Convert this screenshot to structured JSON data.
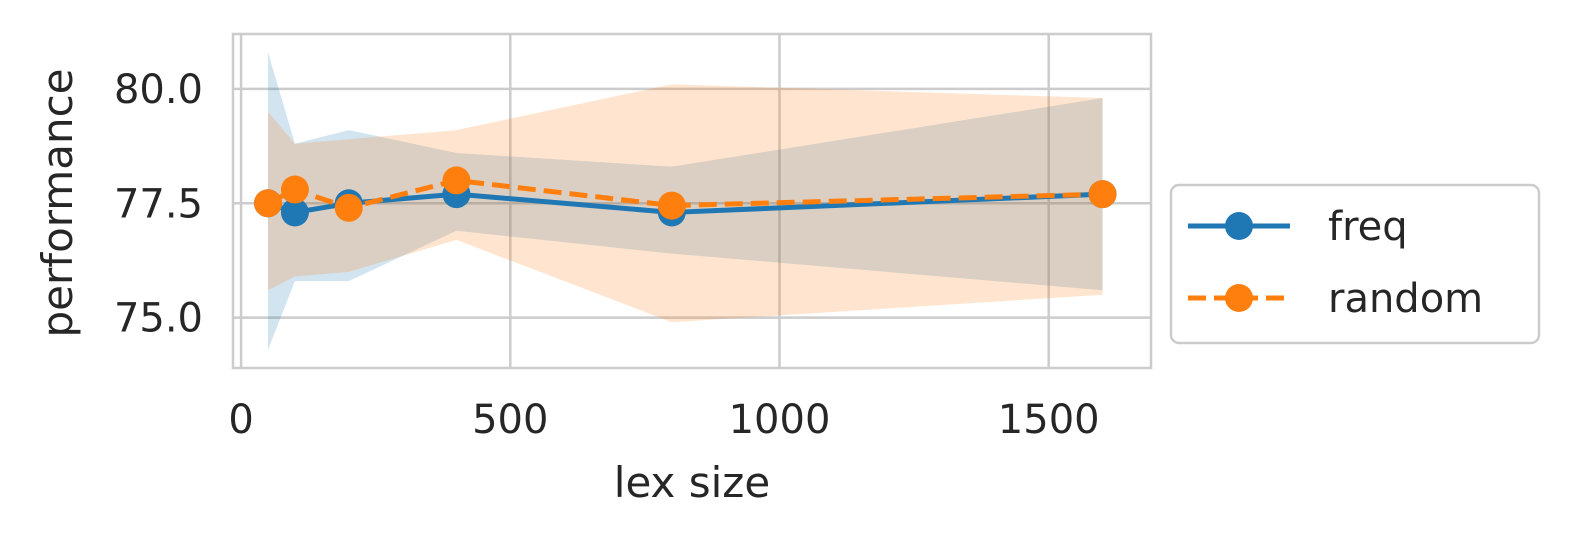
{
  "chart_data": {
    "type": "line",
    "xlabel": "lex size",
    "ylabel": "performance",
    "xlim": [
      -15,
      1690
    ],
    "ylim": [
      73.9,
      81.2
    ],
    "xticks": [
      0,
      500,
      1000,
      1500
    ],
    "xtick_labels": [
      "0",
      "500",
      "1000",
      "1500"
    ],
    "yticks": [
      75.0,
      77.5,
      80.0
    ],
    "ytick_labels": [
      "75.0",
      "77.5",
      "80.0"
    ],
    "grid": true,
    "legend_position": "right",
    "series": [
      {
        "name": "freq",
        "color": "#1f77b4",
        "linestyle": "solid",
        "marker": "circle",
        "x": [
          50,
          100,
          200,
          400,
          800,
          1600
        ],
        "y": [
          77.5,
          77.3,
          77.5,
          77.7,
          77.3,
          77.7
        ],
        "ci_low": [
          74.3,
          75.8,
          75.8,
          76.9,
          76.4,
          75.6
        ],
        "ci_high": [
          80.8,
          78.8,
          79.1,
          78.6,
          78.3,
          79.8
        ]
      },
      {
        "name": "random",
        "color": "#ff7f0e",
        "linestyle": "dashed",
        "marker": "circle",
        "x": [
          50,
          100,
          200,
          400,
          800,
          1600
        ],
        "y": [
          77.5,
          77.8,
          77.4,
          78.0,
          77.45,
          77.7
        ],
        "ci_low": [
          75.6,
          75.9,
          76.0,
          76.7,
          74.9,
          75.5
        ],
        "ci_high": [
          79.5,
          78.8,
          78.9,
          79.1,
          80.1,
          79.8
        ]
      }
    ]
  }
}
